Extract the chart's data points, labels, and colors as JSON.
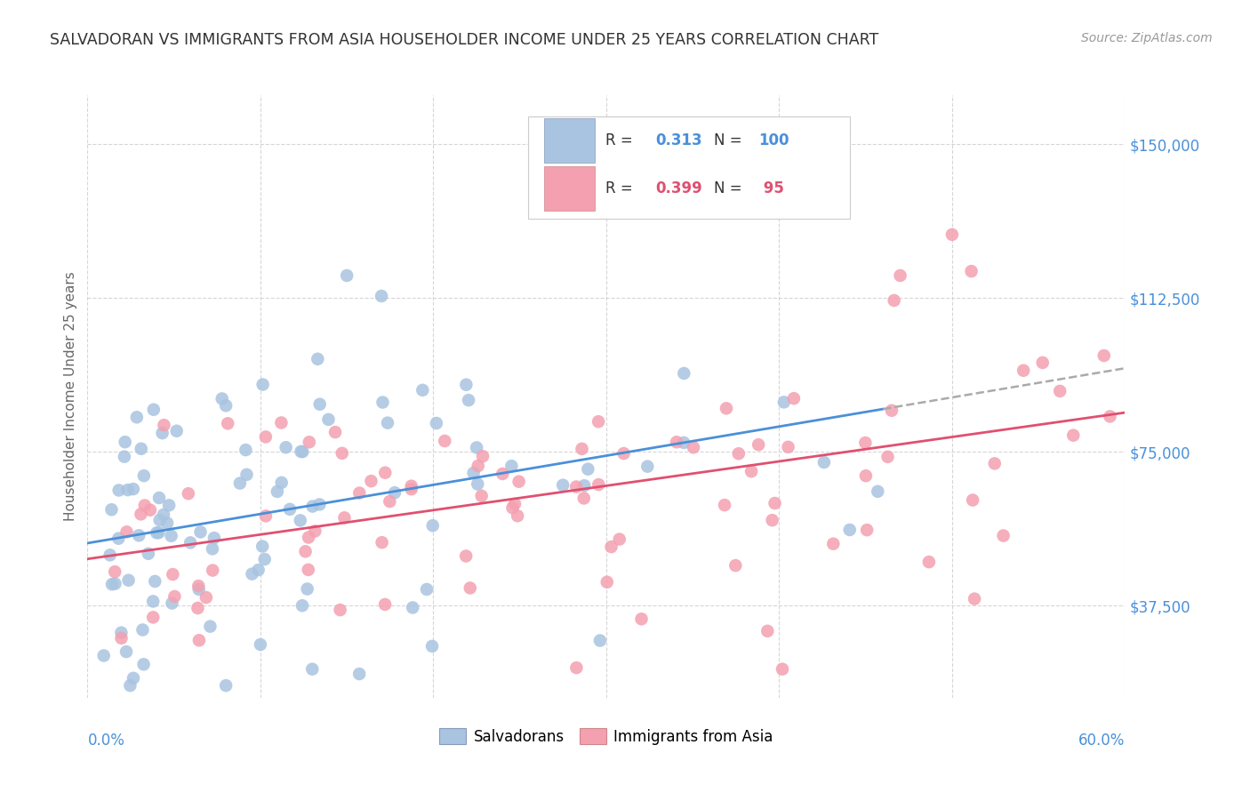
{
  "title": "SALVADORAN VS IMMIGRANTS FROM ASIA HOUSEHOLDER INCOME UNDER 25 YEARS CORRELATION CHART",
  "source": "Source: ZipAtlas.com",
  "ylabel": "Householder Income Under 25 years",
  "blue_scatter_color": "#a8c4e0",
  "pink_scatter_color": "#f4a0b0",
  "blue_line_color": "#4a90d9",
  "pink_line_color": "#e05070",
  "dashed_line_color": "#aaaaaa",
  "tick_label_color": "#4a90d9",
  "grid_color": "#cccccc",
  "background_color": "#ffffff",
  "xmin": 0.0,
  "xmax": 0.6,
  "ymin": 15000,
  "ymax": 162000,
  "r_sal": 0.313,
  "n_sal": 100,
  "r_asia": 0.399,
  "n_asia": 95
}
